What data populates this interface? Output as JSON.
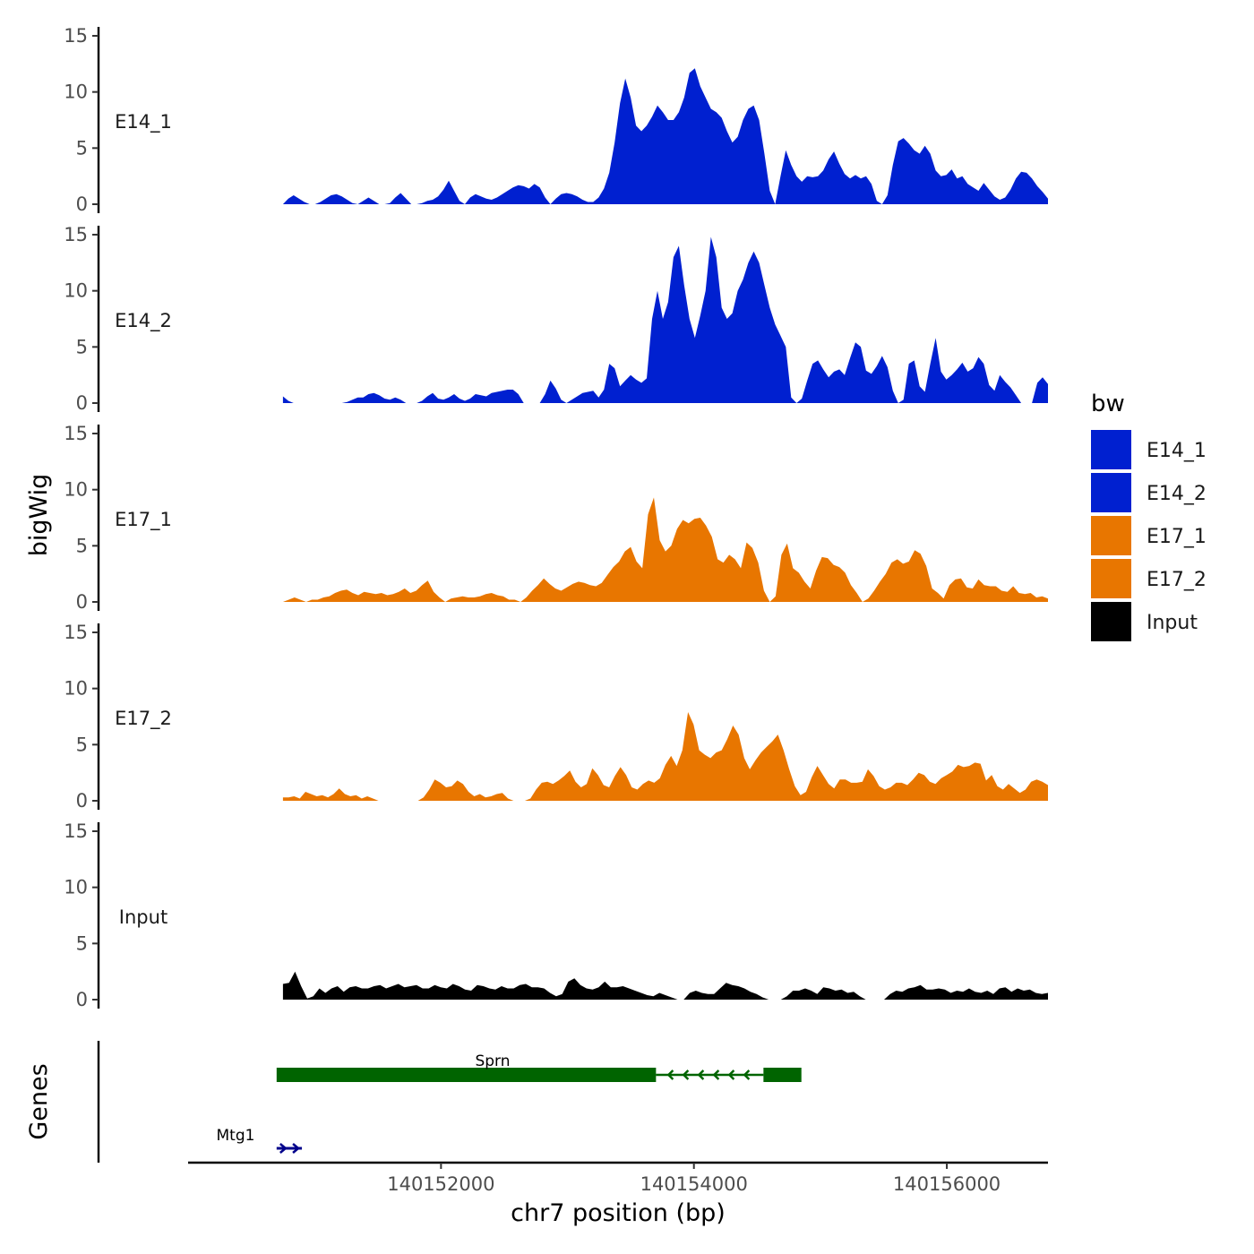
{
  "chart_data": {
    "type": "area",
    "title": "",
    "chromosome": "chr7",
    "xlabel": "chr7 position (bp)",
    "ylabel": "bigWig",
    "genes_label": "Genes",
    "xlim": [
      140150000,
      140156800
    ],
    "x_ticks": [
      140152000,
      140154000,
      140156000
    ],
    "x_tick_labels": [
      "140152000",
      "140154000",
      "140156000"
    ],
    "ylim": [
      0,
      15
    ],
    "y_ticks": [
      0,
      5,
      10,
      15
    ],
    "y_tick_labels": [
      "0",
      "5",
      "10",
      "15"
    ],
    "signal_range": [
      140150750,
      140156800
    ],
    "legend": {
      "title": "bw",
      "position": "right",
      "entries": [
        {
          "label": "E14_1",
          "color": "#0020d0"
        },
        {
          "label": "E14_2",
          "color": "#0020d0"
        },
        {
          "label": "E17_1",
          "color": "#e87600"
        },
        {
          "label": "E17_2",
          "color": "#e87600"
        },
        {
          "label": "Input",
          "color": "#000000"
        }
      ]
    },
    "series": [
      {
        "name": "E14_1",
        "color": "#0020d0",
        "values": [
          0.0,
          0.5,
          0.8,
          0.5,
          0.2,
          0.0,
          0.0,
          0.2,
          0.5,
          0.8,
          0.9,
          0.7,
          0.4,
          0.1,
          0.0,
          0.3,
          0.6,
          0.3,
          0.0,
          0.0,
          0.1,
          0.6,
          1.0,
          0.5,
          0.0,
          0.0,
          0.1,
          0.3,
          0.4,
          0.7,
          1.3,
          2.1,
          1.2,
          0.3,
          0.0,
          0.6,
          0.9,
          0.7,
          0.5,
          0.4,
          0.6,
          0.9,
          1.2,
          1.5,
          1.7,
          1.6,
          1.4,
          1.8,
          1.5,
          0.6,
          0.0,
          0.5,
          0.9,
          1.0,
          0.9,
          0.7,
          0.4,
          0.2,
          0.2,
          0.6,
          1.4,
          2.8,
          5.5,
          9.0,
          11.2,
          9.5,
          7.0,
          6.5,
          7.0,
          7.8,
          8.8,
          8.2,
          7.5,
          7.5,
          8.2,
          9.5,
          11.7,
          12.1,
          10.5,
          9.5,
          8.5,
          8.2,
          7.7,
          6.5,
          5.5,
          6.0,
          7.5,
          8.5,
          8.8,
          7.5,
          4.5,
          1.2,
          0.0,
          2.5,
          4.8,
          3.5,
          2.5,
          2.0,
          2.5,
          2.4,
          2.5,
          3.0,
          4.0,
          4.7,
          3.6,
          2.7,
          2.3,
          2.6,
          2.3,
          2.5,
          1.8,
          0.3,
          0.0,
          0.8,
          3.5,
          5.6,
          5.9,
          5.4,
          4.8,
          4.5,
          5.2,
          4.5,
          3.0,
          2.5,
          2.6,
          3.1,
          2.3,
          2.5,
          1.8,
          1.5,
          1.2,
          1.9,
          1.3,
          0.7,
          0.4,
          0.6,
          1.3,
          2.3,
          2.9,
          2.8,
          2.3,
          1.6,
          1.1,
          0.5
        ]
      },
      {
        "name": "E14_2",
        "color": "#0020d0",
        "values": [
          0.6,
          0.2,
          0.0,
          0.0,
          0.0,
          0.0,
          0.0,
          0.0,
          0.0,
          0.0,
          0.0,
          0.0,
          0.1,
          0.3,
          0.5,
          0.5,
          0.8,
          0.9,
          0.7,
          0.4,
          0.3,
          0.5,
          0.3,
          0.0,
          0.0,
          0.0,
          0.2,
          0.6,
          0.9,
          0.4,
          0.3,
          0.5,
          0.8,
          0.4,
          0.2,
          0.4,
          0.8,
          0.7,
          0.6,
          0.9,
          1.0,
          1.1,
          1.2,
          1.2,
          0.8,
          0.0,
          0.0,
          0.0,
          0.0,
          0.8,
          2.0,
          1.3,
          0.3,
          0.0,
          0.3,
          0.6,
          0.9,
          1.0,
          1.1,
          0.5,
          1.2,
          3.5,
          3.1,
          1.5,
          2.0,
          2.5,
          2.1,
          1.8,
          2.2,
          7.5,
          10.0,
          7.5,
          9.0,
          13.0,
          14.0,
          10.5,
          7.5,
          5.8,
          7.8,
          10.0,
          14.8,
          13.0,
          8.5,
          7.5,
          8.0,
          10.0,
          11.0,
          12.5,
          13.5,
          12.5,
          10.5,
          8.5,
          7.0,
          6.0,
          5.0,
          0.5,
          0.0,
          0.4,
          2.0,
          3.5,
          3.8,
          3.0,
          2.3,
          2.8,
          3.0,
          2.5,
          4.0,
          5.4,
          5.0,
          2.9,
          2.6,
          3.3,
          4.2,
          3.2,
          1.1,
          0.0,
          0.3,
          3.5,
          3.8,
          1.5,
          1.0,
          3.5,
          5.8,
          2.8,
          2.1,
          2.5,
          3.0,
          3.6,
          2.8,
          3.1,
          4.1,
          3.5,
          1.6,
          1.1,
          2.5,
          1.9,
          1.4,
          0.7,
          0.0,
          0.0,
          0.0,
          1.8,
          2.3,
          1.7
        ]
      },
      {
        "name": "E17_1",
        "color": "#e87600",
        "values": [
          0.0,
          0.2,
          0.4,
          0.2,
          0.0,
          0.2,
          0.2,
          0.4,
          0.5,
          0.8,
          1.0,
          1.1,
          0.8,
          0.6,
          0.9,
          0.8,
          0.7,
          0.8,
          0.6,
          0.7,
          0.9,
          1.2,
          0.8,
          1.0,
          1.5,
          1.9,
          0.9,
          0.4,
          0.0,
          0.3,
          0.4,
          0.5,
          0.4,
          0.4,
          0.5,
          0.7,
          0.8,
          0.6,
          0.5,
          0.2,
          0.2,
          0.0,
          0.4,
          1.0,
          1.5,
          2.1,
          1.6,
          1.2,
          1.0,
          1.3,
          1.6,
          1.8,
          1.7,
          1.5,
          1.4,
          1.7,
          2.4,
          3.1,
          3.6,
          4.5,
          4.9,
          3.6,
          3.0,
          7.8,
          9.3,
          5.5,
          4.5,
          5.0,
          6.5,
          7.3,
          7.0,
          7.4,
          7.5,
          6.8,
          5.8,
          3.8,
          3.5,
          4.2,
          3.8,
          3.0,
          5.3,
          4.8,
          3.5,
          1.0,
          0.0,
          0.5,
          4.2,
          5.2,
          3.0,
          2.6,
          1.8,
          1.2,
          2.8,
          4.0,
          3.9,
          3.3,
          3.1,
          2.6,
          1.5,
          0.8,
          0.0,
          0.3,
          1.0,
          1.8,
          2.5,
          3.5,
          3.8,
          3.4,
          3.6,
          4.6,
          4.3,
          3.2,
          1.2,
          0.8,
          0.3,
          1.5,
          2.0,
          2.1,
          1.3,
          1.2,
          2.0,
          1.5,
          1.4,
          1.4,
          1.0,
          0.9,
          1.4,
          0.8,
          0.7,
          0.8,
          0.4,
          0.5,
          0.3
        ]
      },
      {
        "name": "E17_2",
        "color": "#e87600",
        "values": [
          0.3,
          0.3,
          0.4,
          0.2,
          0.8,
          0.6,
          0.4,
          0.5,
          0.3,
          0.6,
          1.1,
          0.6,
          0.4,
          0.5,
          0.2,
          0.4,
          0.2,
          0.0,
          0.0,
          0.0,
          0.0,
          0.0,
          0.0,
          0.0,
          0.0,
          0.3,
          1.0,
          1.9,
          1.6,
          1.2,
          1.3,
          1.8,
          1.5,
          0.8,
          0.4,
          0.6,
          0.3,
          0.4,
          0.6,
          0.7,
          0.2,
          0.0,
          0.0,
          0.0,
          0.2,
          1.0,
          1.6,
          1.7,
          1.5,
          1.8,
          2.2,
          2.7,
          1.7,
          1.2,
          1.5,
          2.9,
          2.3,
          1.4,
          1.2,
          2.2,
          3.0,
          2.3,
          1.2,
          1.0,
          1.5,
          1.8,
          1.6,
          2.0,
          3.2,
          4.0,
          3.1,
          4.5,
          7.9,
          6.8,
          4.5,
          4.1,
          3.8,
          4.3,
          4.5,
          5.5,
          6.7,
          5.9,
          3.8,
          2.8,
          3.6,
          4.3,
          4.8,
          5.3,
          5.9,
          4.5,
          2.8,
          1.3,
          0.5,
          0.8,
          2.1,
          3.1,
          2.3,
          1.5,
          1.1,
          1.9,
          1.9,
          1.6,
          1.6,
          1.7,
          2.8,
          2.2,
          1.3,
          1.0,
          1.2,
          1.6,
          1.6,
          1.4,
          1.9,
          2.5,
          2.3,
          1.7,
          1.5,
          2.0,
          2.3,
          2.6,
          3.2,
          3.0,
          3.1,
          3.4,
          3.3,
          1.8,
          2.3,
          1.3,
          1.0,
          1.5,
          1.1,
          0.7,
          1.0,
          1.7,
          1.9,
          1.7,
          1.4
        ]
      },
      {
        "name": "Input",
        "color": "#000000",
        "values": [
          1.4,
          1.5,
          2.5,
          1.2,
          0.1,
          0.3,
          1.0,
          0.6,
          1.0,
          1.2,
          0.7,
          1.1,
          1.2,
          1.0,
          1.0,
          1.2,
          1.3,
          1.0,
          1.2,
          1.4,
          1.1,
          1.2,
          1.3,
          1.0,
          1.0,
          1.3,
          1.1,
          1.0,
          1.4,
          1.2,
          0.9,
          0.8,
          1.3,
          1.2,
          1.0,
          0.9,
          1.2,
          1.0,
          1.0,
          1.3,
          1.4,
          1.1,
          1.1,
          1.0,
          0.6,
          0.3,
          0.5,
          1.6,
          1.9,
          1.3,
          1.0,
          0.9,
          1.1,
          1.6,
          1.1,
          1.1,
          1.2,
          1.0,
          0.8,
          0.6,
          0.4,
          0.3,
          0.6,
          0.4,
          0.2,
          0.0,
          0.0,
          0.6,
          0.8,
          0.6,
          0.5,
          0.5,
          1.0,
          1.5,
          1.3,
          1.2,
          1.0,
          0.7,
          0.5,
          0.2,
          0.0,
          0.0,
          0.0,
          0.3,
          0.8,
          0.8,
          1.0,
          0.8,
          0.5,
          1.1,
          1.0,
          0.8,
          0.9,
          0.6,
          0.7,
          0.3,
          0.0,
          0.0,
          0.0,
          0.0,
          0.5,
          0.8,
          0.7,
          1.0,
          1.1,
          1.3,
          0.9,
          0.9,
          1.0,
          0.9,
          0.6,
          0.8,
          0.7,
          1.0,
          0.7,
          0.6,
          0.8,
          0.5,
          1.0,
          1.1,
          0.7,
          1.0,
          0.8,
          0.9,
          0.6,
          0.5,
          0.6
        ]
      }
    ],
    "genes": [
      {
        "name": "Sprn",
        "strand": "-",
        "row": 1,
        "start": 140150700,
        "end": 140154850,
        "thin_from": 140153700,
        "thin_to": 140154550
      },
      {
        "name": "Mtg1",
        "strand": "+",
        "row": 2,
        "start": 140150700,
        "end": 140150900
      }
    ]
  }
}
